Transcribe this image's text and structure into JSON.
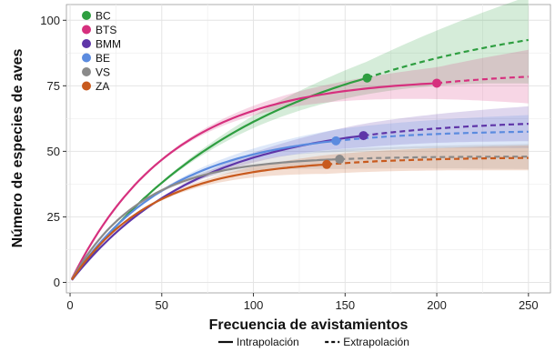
{
  "chart_data": {
    "type": "line",
    "xlabel": "Frecuencia de avistamientos",
    "ylabel": "Número de especies de aves",
    "xlim": [
      0,
      250
    ],
    "ylim": [
      0,
      100
    ],
    "xticks": [
      0,
      50,
      100,
      150,
      200,
      250
    ],
    "yticks": [
      0,
      25,
      50,
      75,
      100
    ],
    "grid": true,
    "legend_position": "top-left",
    "series": [
      {
        "name": "BC",
        "color": "#2e9e40",
        "asymptote": 98,
        "observed_x": 162,
        "observed_y": 78,
        "end_y": 92.5,
        "band": [
          0.08,
          0.18
        ]
      },
      {
        "name": "BTS",
        "color": "#d6307e",
        "asymptote": 78,
        "observed_x": 200,
        "observed_y": 76,
        "end_y": 78.5,
        "band": [
          0.08,
          0.13
        ]
      },
      {
        "name": "BMM",
        "color": "#5e35a8",
        "asymptote": 62,
        "observed_x": 160,
        "observed_y": 56,
        "end_y": 60.5,
        "band": [
          0.08,
          0.11
        ]
      },
      {
        "name": "BE",
        "color": "#5b8bdf",
        "asymptote": 58,
        "observed_x": 145,
        "observed_y": 54,
        "end_y": 57.5,
        "band": [
          0.08,
          0.11
        ]
      },
      {
        "name": "VS",
        "color": "#8a8a8a",
        "asymptote": 48,
        "observed_x": 147,
        "observed_y": 47,
        "end_y": 48.0,
        "band": [
          0.08,
          0.1
        ]
      },
      {
        "name": "ZA",
        "color": "#c85a1e",
        "asymptote": 47,
        "observed_x": 140,
        "observed_y": 45,
        "end_y": 47.5,
        "band": [
          0.08,
          0.1
        ]
      }
    ],
    "linetype_legend": [
      {
        "label": "Intrapolación",
        "style": "solid"
      },
      {
        "label": "Extrapolación",
        "style": "dashed"
      }
    ]
  }
}
